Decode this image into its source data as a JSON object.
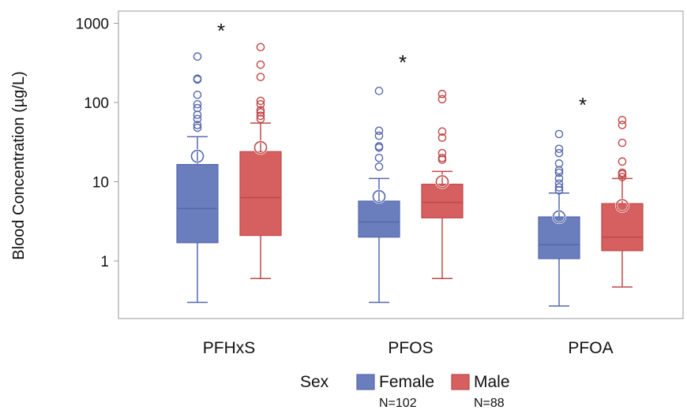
{
  "chart_data": {
    "type": "box",
    "ylabel": "Blood Concentration (µg/L)",
    "yscale": "log",
    "ylim": [
      0.2,
      1500
    ],
    "yticks": [
      1,
      10,
      100,
      1000
    ],
    "ytick_labels": [
      "1",
      "10",
      "100",
      "1000"
    ],
    "categories": [
      "PFHxS",
      "PFOS",
      "PFOA"
    ],
    "significance": [
      "*",
      "*",
      "*"
    ],
    "legend": {
      "title": "Sex",
      "entries": [
        {
          "name": "Female",
          "n": "N=102",
          "color": "#6a7dbc"
        },
        {
          "name": "Male",
          "n": "N=88",
          "color": "#d65f5f"
        }
      ]
    },
    "series": [
      {
        "name": "Female",
        "color": "#6a7dbc",
        "edge": "#5668ad",
        "boxes": [
          {
            "q1": 1.7,
            "median": 4.6,
            "q3": 16.5,
            "whisker_low": 0.3,
            "whisker_high": 37,
            "mean": 21,
            "outliers": [
              48,
              52,
              62,
              70,
              85,
              95,
              125,
              195,
              200,
              380
            ]
          },
          {
            "q1": 2.0,
            "median": 3.1,
            "q3": 5.7,
            "whisker_low": 0.3,
            "whisker_high": 11,
            "mean": 6.5,
            "outliers": [
              15.5,
              20,
              27,
              28,
              38,
              44,
              140
            ]
          },
          {
            "q1": 1.07,
            "median": 1.6,
            "q3": 3.6,
            "whisker_low": 0.27,
            "whisker_high": 7.2,
            "mean": 3.6,
            "outliers": [
              7.8,
              8.5,
              9.5,
              11,
              13,
              14,
              17,
              23,
              26,
              40
            ]
          }
        ]
      },
      {
        "name": "Male",
        "color": "#d65f5f",
        "edge": "#c04848",
        "boxes": [
          {
            "q1": 2.1,
            "median": 6.3,
            "q3": 24,
            "whisker_low": 0.6,
            "whisker_high": 55,
            "mean": 27,
            "outliers": [
              62,
              68,
              75,
              80,
              95,
              105,
              210,
              300,
              500
            ]
          },
          {
            "q1": 3.5,
            "median": 5.5,
            "q3": 9.3,
            "whisker_low": 0.6,
            "whisker_high": 13.5,
            "mean": 10,
            "outliers": [
              19,
              20,
              23,
              36,
              43,
              110,
              128
            ]
          },
          {
            "q1": 1.35,
            "median": 2.0,
            "q3": 5.3,
            "whisker_low": 0.47,
            "whisker_high": 11,
            "mean": 5.0,
            "outliers": [
              11.5,
              12.5,
              13,
              18,
              31,
              52,
              60
            ]
          }
        ]
      }
    ]
  }
}
